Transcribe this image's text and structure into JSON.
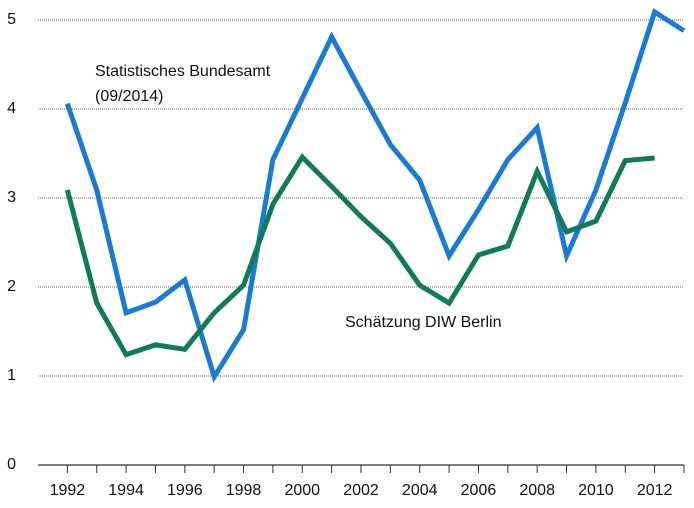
{
  "chart_data": {
    "type": "line",
    "x": [
      1992,
      1993,
      1994,
      1995,
      1996,
      1997,
      1998,
      1999,
      2000,
      2001,
      2002,
      2003,
      2004,
      2005,
      2006,
      2007,
      2008,
      2009,
      2010,
      2011,
      2012,
      2013
    ],
    "series": [
      {
        "name": "Statistisches Bundesamt",
        "color": "#1a7ad4",
        "values": [
          4.06,
          3.09,
          1.71,
          1.83,
          2.08,
          0.99,
          1.52,
          3.43,
          4.12,
          4.81,
          4.2,
          3.6,
          3.2,
          2.35,
          2.87,
          3.43,
          3.79,
          2.35,
          3.09,
          4.07,
          5.09,
          4.88
        ]
      },
      {
        "name": "Schätzung DIW Berlin",
        "color": "#117a5a",
        "values": [
          3.09,
          1.82,
          1.24,
          1.35,
          1.3,
          1.71,
          2.02,
          2.93,
          3.46,
          3.13,
          2.79,
          2.49,
          2.02,
          1.82,
          2.36,
          2.46,
          3.3,
          2.62,
          2.74,
          3.42,
          3.45,
          null
        ]
      }
    ],
    "annotations": [
      "(09/2014)"
    ],
    "xlim": [
      1991,
      2013
    ],
    "xticks": [
      1992,
      1994,
      1996,
      1998,
      2000,
      2002,
      2004,
      2006,
      2008,
      2010,
      2012
    ],
    "xminorticks": [
      1993,
      1995,
      1997,
      1999,
      2001,
      2003,
      2005,
      2007,
      2009,
      2011,
      2013
    ],
    "ylim": [
      0,
      5.2
    ],
    "yticks": [
      0,
      1,
      2,
      3,
      4,
      5
    ],
    "grid": true
  }
}
